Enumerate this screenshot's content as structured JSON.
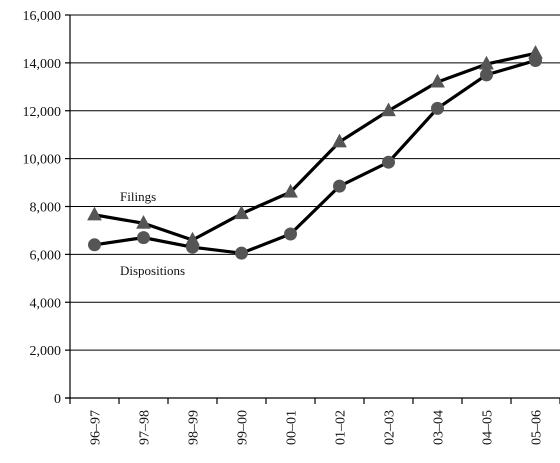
{
  "chart_data": {
    "type": "line",
    "categories": [
      "96–97",
      "97–98",
      "98–99",
      "99–00",
      "00–01",
      "01–02",
      "02–03",
      "03–04",
      "04–05",
      "05–06"
    ],
    "series": [
      {
        "name": "Filings",
        "marker": "triangle",
        "color": "#000000",
        "marker_color": "#555555",
        "values": [
          7650,
          7300,
          6600,
          7700,
          8600,
          10700,
          12000,
          13200,
          13950,
          14400
        ]
      },
      {
        "name": "Dispositions",
        "marker": "circle",
        "color": "#000000",
        "marker_color": "#555555",
        "values": [
          6400,
          6700,
          6300,
          6050,
          6850,
          8850,
          9850,
          12100,
          13500,
          14100
        ]
      }
    ],
    "title": "",
    "xlabel": "",
    "ylabel": "",
    "ylim": [
      0,
      16000
    ],
    "yticks": [
      0,
      2000,
      4000,
      6000,
      8000,
      10000,
      12000,
      14000,
      16000
    ],
    "ytick_labels": [
      "0",
      "2,000",
      "4,000",
      "6,000",
      "8,000",
      "10,000",
      "12,000",
      "14,000",
      "16,000"
    ],
    "grid": true,
    "legend": "inline"
  }
}
